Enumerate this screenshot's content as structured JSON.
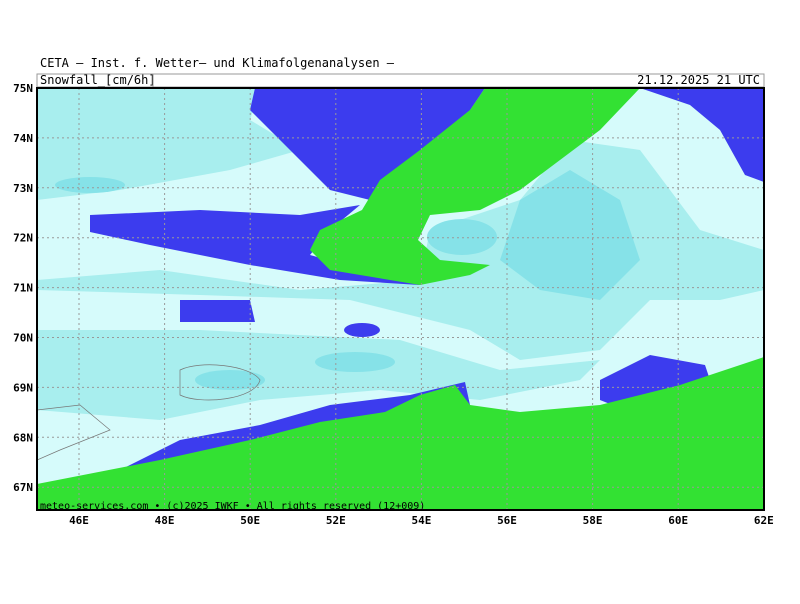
{
  "header": {
    "title": "CETA — Inst. f. Wetter— und Klimafolgenanalysen —",
    "parameter": "Snowfall_[cm/6h]",
    "valid_time": "21.12.2025 21 UTC"
  },
  "axes": {
    "lat_labels": [
      "75N",
      "74N",
      "73N",
      "72N",
      "71N",
      "70N",
      "69N",
      "68N",
      "67N"
    ],
    "lon_labels": [
      "46E",
      "48E",
      "50E",
      "52E",
      "54E",
      "56E",
      "58E",
      "60E",
      "62E"
    ]
  },
  "footer": {
    "credit": "meteo-services.com • (c)2025 IWKF • All rights reserved (12+009)"
  }
}
